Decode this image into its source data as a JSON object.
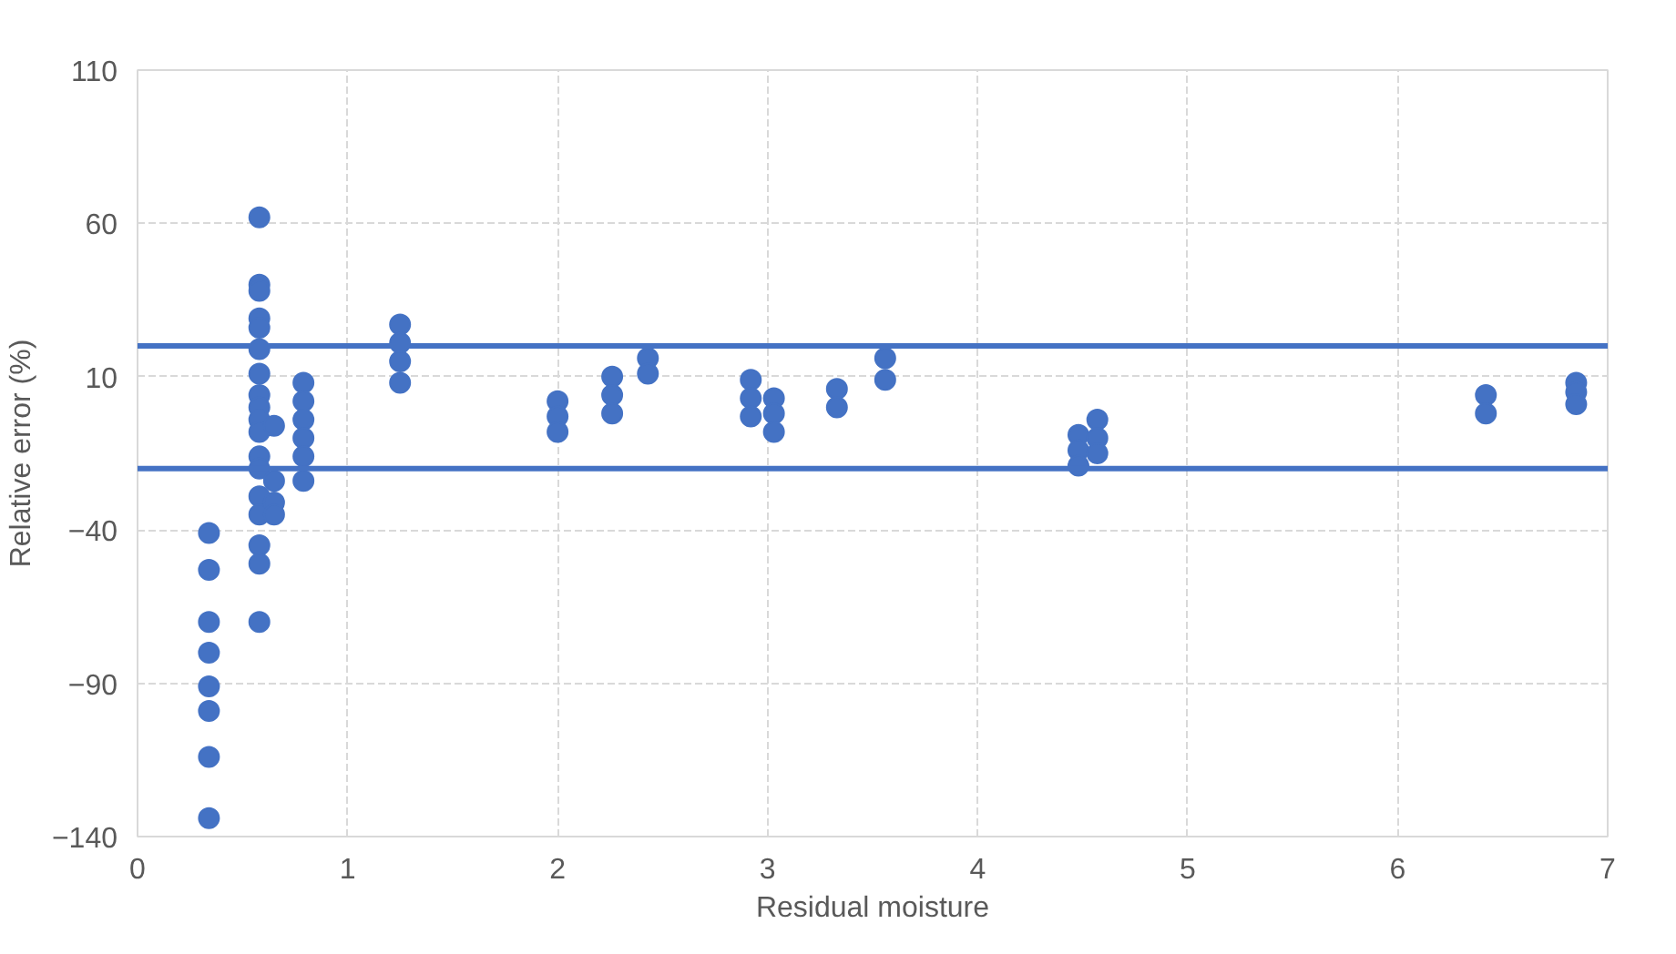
{
  "chart_data": {
    "type": "scatter",
    "xlabel": "Residual moisture",
    "ylabel": "Relative error (%)",
    "xlim": [
      0,
      7
    ],
    "xticks": [
      0,
      1,
      2,
      3,
      4,
      5,
      6,
      7
    ],
    "ylim": [
      -140,
      110
    ],
    "yticks": [
      -140,
      -90,
      -40,
      10,
      60,
      110
    ],
    "grid": true,
    "marker": "circle",
    "series": [
      {
        "color": "#4472c4",
        "x": [
          0.34,
          0.34,
          0.34,
          0.34,
          0.34,
          0.34,
          0.34,
          0.34,
          0.58,
          0.58,
          0.58,
          0.58,
          0.58,
          0.58,
          0.58,
          0.58,
          0.58,
          0.58,
          0.58,
          0.58,
          0.58,
          0.58,
          0.58,
          0.58,
          0.58,
          0.58,
          0.65,
          0.65,
          0.65,
          0.65,
          0.79,
          0.79,
          0.79,
          0.79,
          0.79,
          0.79,
          1.25,
          1.25,
          1.25,
          1.25,
          2.0,
          2.0,
          2.0,
          2.26,
          2.26,
          2.26,
          2.43,
          2.43,
          2.92,
          2.92,
          2.92,
          3.03,
          3.03,
          3.03,
          3.33,
          3.33,
          3.56,
          3.56,
          4.48,
          4.48,
          4.48,
          4.57,
          4.57,
          4.57,
          6.42,
          6.42,
          6.85,
          6.85,
          6.85
        ],
        "values": [
          -41,
          -53,
          -70,
          -80,
          -91,
          -99,
          -114,
          -134,
          62,
          40,
          38,
          29,
          26,
          19,
          11,
          4,
          0,
          -4,
          -8,
          -16,
          -20,
          -29,
          -35,
          -45,
          -51,
          -70,
          -6,
          -24,
          -31,
          -35,
          8,
          2,
          -4,
          -10,
          -16,
          -24,
          27,
          21,
          15,
          8,
          2,
          -3,
          -8,
          10,
          4,
          -2,
          16,
          11,
          9,
          3,
          -3,
          3,
          -2,
          -8,
          6,
          0,
          16,
          9,
          -9,
          -14,
          -19,
          -4,
          -10,
          -15,
          4,
          -2,
          8,
          5,
          1
        ]
      }
    ],
    "ref_lines": [
      {
        "axis": "y",
        "value": 20,
        "color": "#4472c4"
      },
      {
        "axis": "y",
        "value": -20,
        "color": "#4472c4"
      }
    ]
  }
}
